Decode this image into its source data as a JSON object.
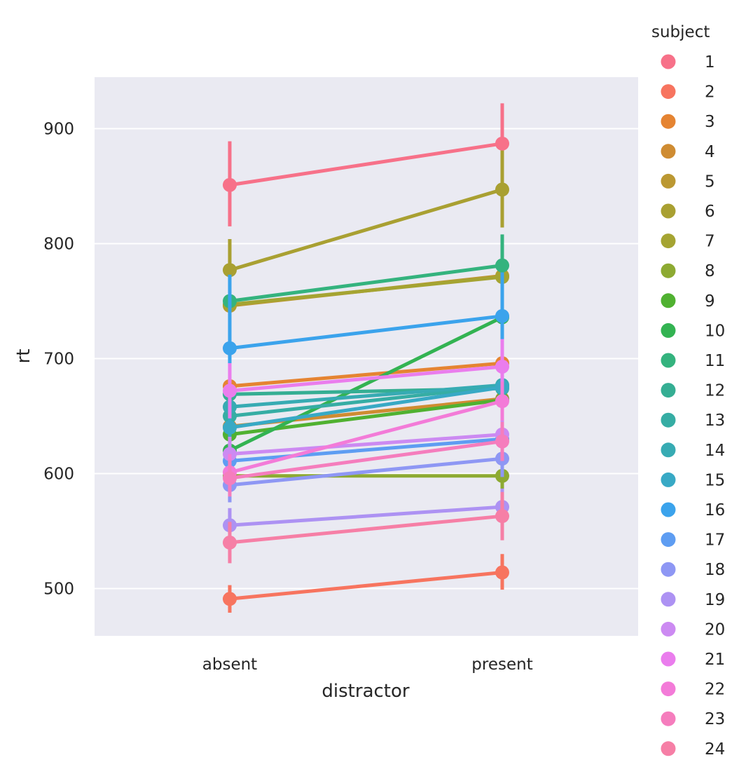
{
  "chart_data": {
    "type": "line",
    "xlabel": "distractor",
    "ylabel": "rt",
    "categories": [
      "absent",
      "present"
    ],
    "ylim": [
      460,
      945
    ],
    "yticks": [
      500,
      600,
      700,
      800,
      900
    ],
    "grid": true,
    "legend": {
      "title": "subject",
      "placement": "right"
    },
    "series": [
      {
        "name": "1",
        "color": "#f77189",
        "values": [
          851,
          887
        ],
        "ci": [
          [
            815,
            889
          ],
          [
            853,
            922
          ]
        ]
      },
      {
        "name": "2",
        "color": "#f7745f",
        "values": [
          491,
          514
        ],
        "ci": [
          [
            479,
            503
          ],
          [
            499,
            530
          ]
        ]
      },
      {
        "name": "3",
        "color": "#e58432",
        "values": [
          676,
          696
        ],
        "ci": [
          [
            662,
            690
          ],
          [
            680,
            712
          ]
        ]
      },
      {
        "name": "4",
        "color": "#cf8c32",
        "values": [
          641,
          665
        ],
        "ci": [
          [
            625,
            657
          ],
          [
            648,
            682
          ]
        ]
      },
      {
        "name": "5",
        "color": "#bb9832",
        "values": [
          746,
          772
        ],
        "ci": [
          [
            731,
            761
          ],
          [
            756,
            789
          ]
        ]
      },
      {
        "name": "6",
        "color": "#a9a032",
        "values": [
          777,
          847
        ],
        "ci": [
          [
            752,
            804
          ],
          [
            814,
            881
          ]
        ]
      },
      {
        "name": "7",
        "color": "#a5a432",
        "values": [
          747,
          771
        ],
        "ci": [
          [
            732,
            763
          ],
          [
            755,
            788
          ]
        ]
      },
      {
        "name": "8",
        "color": "#8daa32",
        "values": [
          598,
          598
        ],
        "ci": [
          [
            586,
            610
          ],
          [
            586,
            610
          ]
        ]
      },
      {
        "name": "9",
        "color": "#50b131",
        "values": [
          634,
          664
        ],
        "ci": [
          [
            619,
            651
          ],
          [
            647,
            682
          ]
        ]
      },
      {
        "name": "10",
        "color": "#33b352",
        "values": [
          620,
          736
        ],
        "ci": [
          [
            603,
            637
          ],
          [
            718,
            754
          ]
        ]
      },
      {
        "name": "11",
        "color": "#34b37e",
        "values": [
          750,
          781
        ],
        "ci": [
          [
            733,
            768
          ],
          [
            760,
            808
          ]
        ]
      },
      {
        "name": "12",
        "color": "#35ae93",
        "values": [
          669,
          674
        ],
        "ci": [
          [
            653,
            685
          ],
          [
            658,
            690
          ]
        ]
      },
      {
        "name": "13",
        "color": "#36ada4",
        "values": [
          650,
          676
        ],
        "ci": [
          [
            634,
            666
          ],
          [
            659,
            693
          ]
        ]
      },
      {
        "name": "14",
        "color": "#37abb3",
        "values": [
          658,
          677
        ],
        "ci": [
          [
            642,
            674
          ],
          [
            660,
            694
          ]
        ]
      },
      {
        "name": "15",
        "color": "#38a9c5",
        "values": [
          640,
          675
        ],
        "ci": [
          [
            624,
            656
          ],
          [
            658,
            692
          ]
        ]
      },
      {
        "name": "16",
        "color": "#3ba3ec",
        "values": [
          709,
          737
        ],
        "ci": [
          [
            680,
            773
          ],
          [
            700,
            775
          ]
        ]
      },
      {
        "name": "17",
        "color": "#5e9df2",
        "values": [
          611,
          630
        ],
        "ci": [
          [
            596,
            626
          ],
          [
            614,
            646
          ]
        ]
      },
      {
        "name": "18",
        "color": "#8e97f4",
        "values": [
          590,
          613
        ],
        "ci": [
          [
            575,
            605
          ],
          [
            597,
            629
          ]
        ]
      },
      {
        "name": "19",
        "color": "#ad92f3",
        "values": [
          555,
          571
        ],
        "ci": [
          [
            540,
            570
          ],
          [
            555,
            587
          ]
        ]
      },
      {
        "name": "20",
        "color": "#cc8af2",
        "values": [
          617,
          634
        ],
        "ci": [
          [
            602,
            632
          ],
          [
            618,
            650
          ]
        ]
      },
      {
        "name": "21",
        "color": "#ea7ded",
        "values": [
          672,
          693
        ],
        "ci": [
          [
            648,
            696
          ],
          [
            669,
            717
          ]
        ]
      },
      {
        "name": "22",
        "color": "#f37bd8",
        "values": [
          601,
          663
        ],
        "ci": [
          [
            585,
            617
          ],
          [
            646,
            680
          ]
        ]
      },
      {
        "name": "23",
        "color": "#f57dbd",
        "values": [
          596,
          628
        ],
        "ci": [
          [
            580,
            612
          ],
          [
            611,
            645
          ]
        ]
      },
      {
        "name": "24",
        "color": "#f67fa6",
        "values": [
          540,
          563
        ],
        "ci": [
          [
            522,
            558
          ],
          [
            542,
            584
          ]
        ]
      }
    ]
  }
}
